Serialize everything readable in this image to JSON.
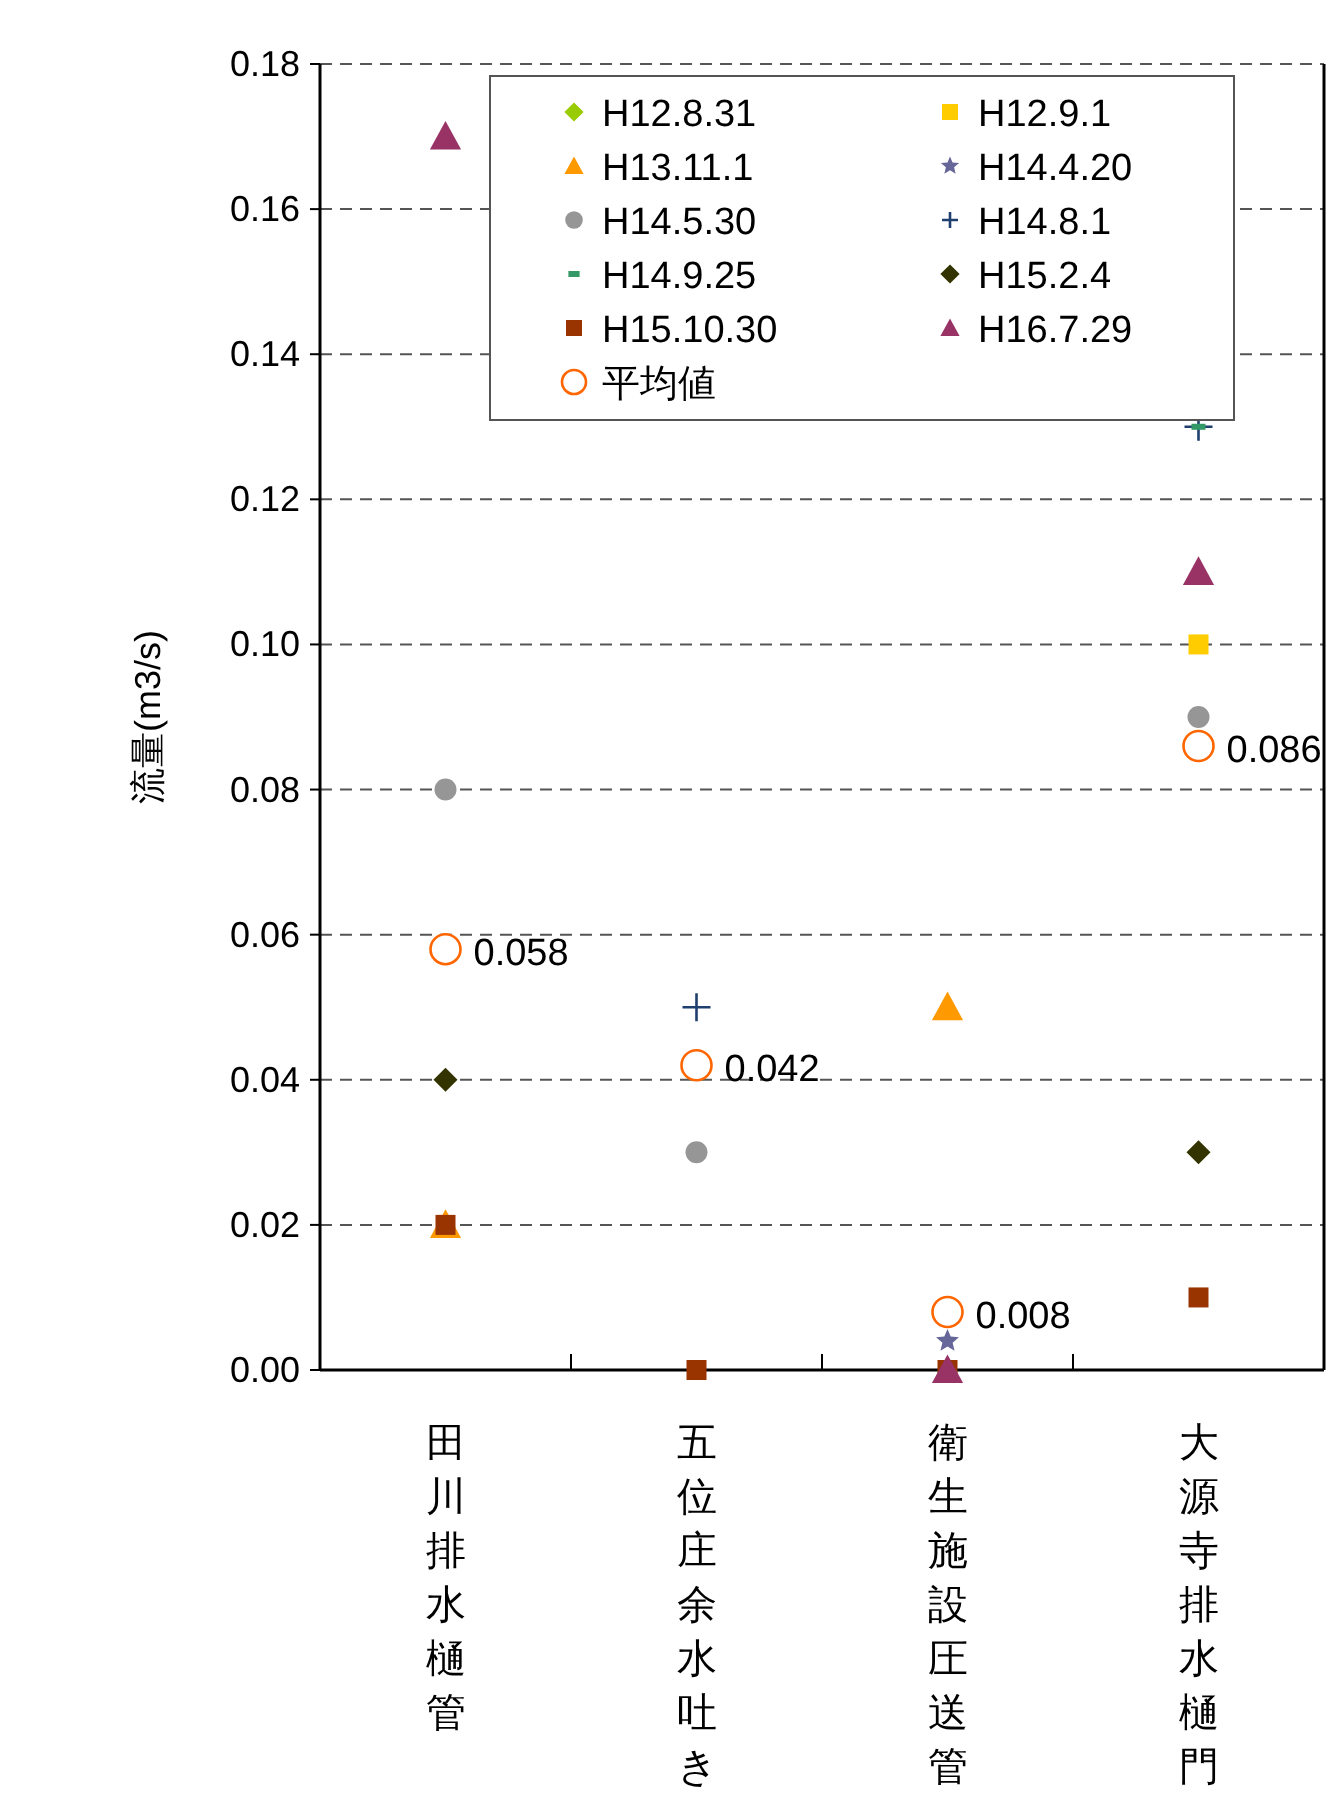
{
  "chart_data": {
    "type": "scatter",
    "ylabel": "流量(m3/s)",
    "categories": [
      "田川排水樋管",
      "五位庄余水吐き",
      "衛生施設圧送管",
      "大源寺排水樋門"
    ],
    "ylim": [
      0,
      0.18
    ],
    "yticks": [
      {
        "value": 0,
        "label": "0.00"
      },
      {
        "value": 0.02,
        "label": "0.02"
      },
      {
        "value": 0.04,
        "label": "0.04"
      },
      {
        "value": 0.06,
        "label": "0.06"
      },
      {
        "value": 0.08,
        "label": "0.08"
      },
      {
        "value": 0.1,
        "label": "0.10"
      },
      {
        "value": 0.12,
        "label": "0.12"
      },
      {
        "value": 0.14,
        "label": "0.14"
      },
      {
        "value": 0.16,
        "label": "0.16"
      },
      {
        "value": 0.18,
        "label": "0.18"
      }
    ],
    "grid": "y",
    "legend": "top right",
    "series": [
      {
        "name": "H12.8.31",
        "color": "#99cc00",
        "marker": "diamond",
        "values": [
          null,
          null,
          null,
          null
        ]
      },
      {
        "name": "H12.9.1",
        "color": "#ffcc00",
        "marker": "square",
        "values": [
          null,
          null,
          null,
          0.1
        ]
      },
      {
        "name": "H13.11.1",
        "color": "#ff9900",
        "marker": "triangle",
        "values": [
          0.02,
          null,
          0.05,
          null
        ]
      },
      {
        "name": "H14.4.20",
        "color": "#666699",
        "marker": "star",
        "values": [
          null,
          null,
          0.004,
          null
        ]
      },
      {
        "name": "H14.5.30",
        "color": "#969696",
        "marker": "circle",
        "values": [
          0.08,
          0.03,
          null,
          0.09
        ]
      },
      {
        "name": "H14.8.1",
        "color": "#1f3f6f",
        "marker": "cross",
        "values": [
          null,
          0.05,
          null,
          0.13
        ]
      },
      {
        "name": "H14.9.25",
        "color": "#339966",
        "values": [
          null,
          null,
          null,
          0.13
        ]
      },
      {
        "name": "H15.2.4",
        "color": "#333300",
        "marker": "diamond",
        "values": [
          0.04,
          null,
          null,
          0.03
        ]
      },
      {
        "name": "H15.10.30",
        "color": "#993300",
        "marker": "square",
        "values": [
          0.02,
          0,
          0,
          0.01
        ]
      },
      {
        "name": "H16.7.29",
        "color": "#993366",
        "marker": "triangle",
        "values": [
          0.17,
          null,
          0,
          0.11
        ]
      },
      {
        "name": "平均値",
        "color": "#ff6600",
        "marker": "open circle",
        "values": [
          0.058,
          0.042,
          0.008,
          0.086
        ],
        "value_labels": [
          "0.058",
          "0.042",
          "0.008",
          "0.086"
        ]
      }
    ]
  }
}
